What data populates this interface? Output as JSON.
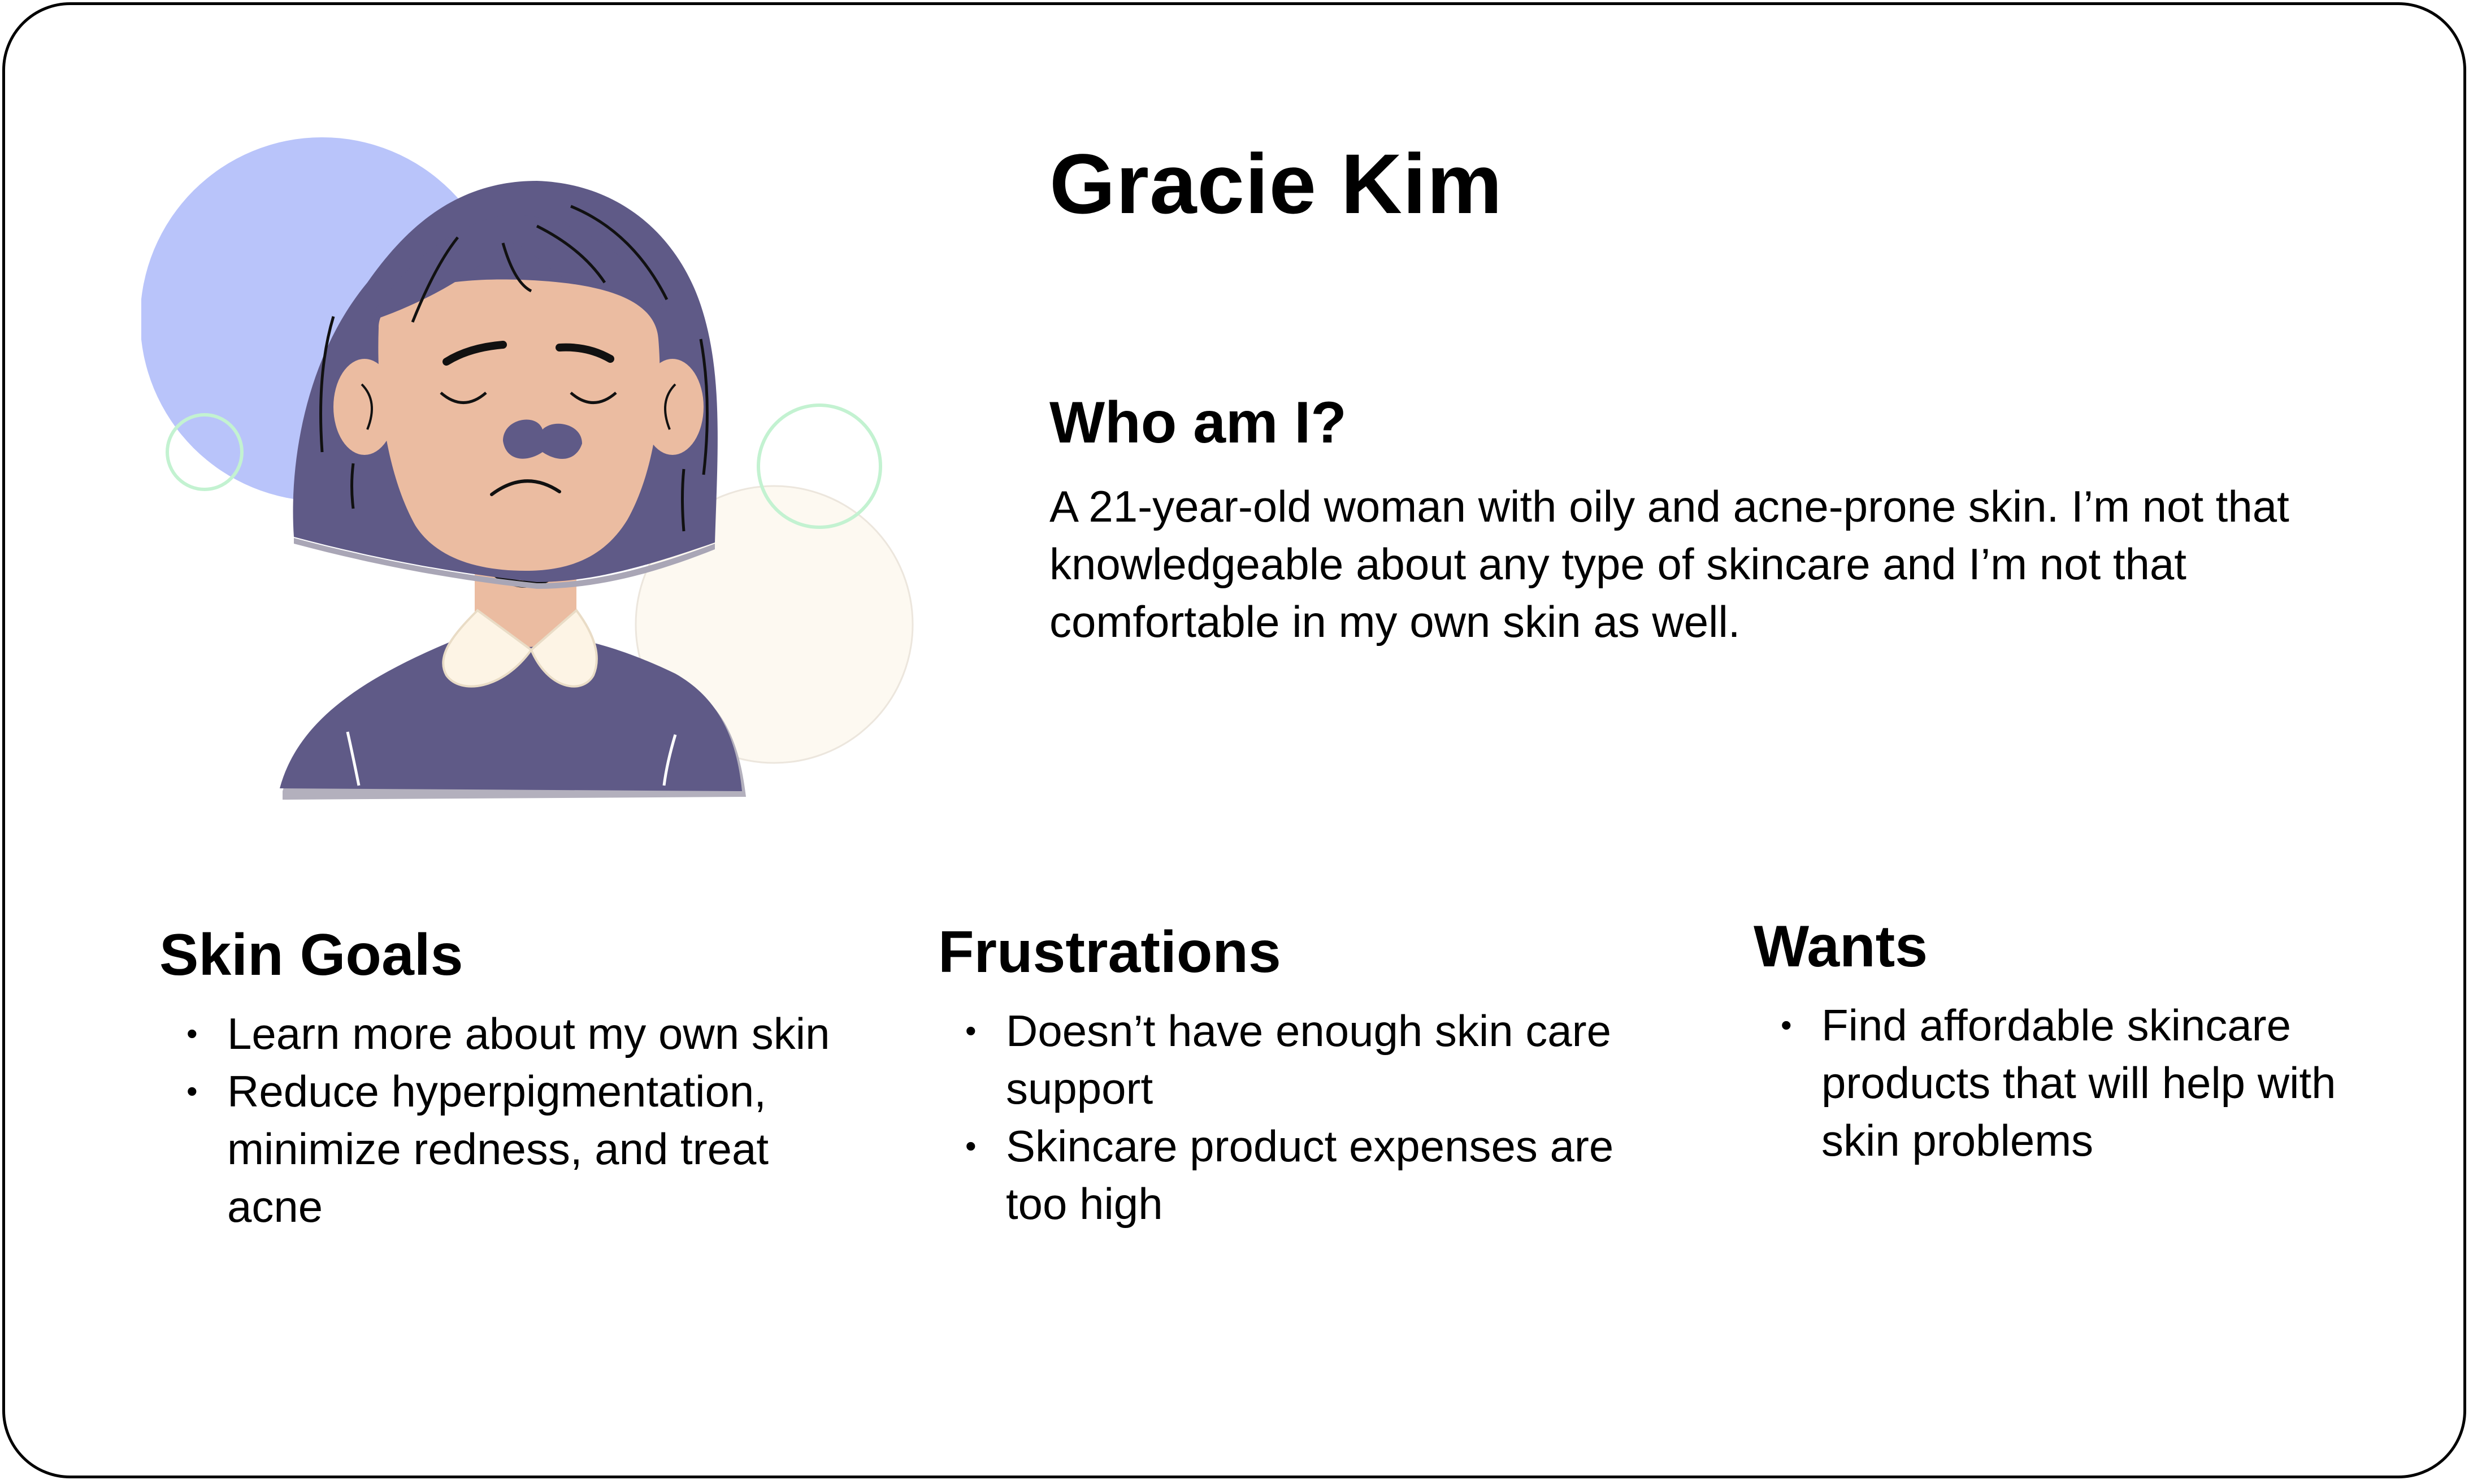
{
  "persona": {
    "name": "Gracie Kim",
    "avatar_icon": "sad-woman-avatar-icon"
  },
  "about": {
    "heading": "Who am I?",
    "text": "A 21-year-old woman with oily and acne-prone skin. I’m not that knowledgeable about any type of skincare and I’m not that comfortable in my own skin as well."
  },
  "skin_goals": {
    "heading": "Skin Goals",
    "items": [
      "Learn more about my own skin",
      "Reduce hyperpigmentation, minimize redness, and treat acne"
    ]
  },
  "frustrations": {
    "heading": "Frustrations",
    "items": [
      "Doesn’t have enough skin care support",
      "Skincare product expenses are too high"
    ]
  },
  "wants": {
    "heading": "Wants",
    "items": [
      "Find affordable skincare products that will help with skin problems"
    ]
  },
  "colors": {
    "hair": "#5f5a87",
    "skin": "#ebbca1",
    "blue_circle": "#b9c4fa",
    "cream_circle": "#fdf9f1",
    "green_ring": "#c3f2d1",
    "collar": "#fdf4e5",
    "border": "#000000"
  }
}
